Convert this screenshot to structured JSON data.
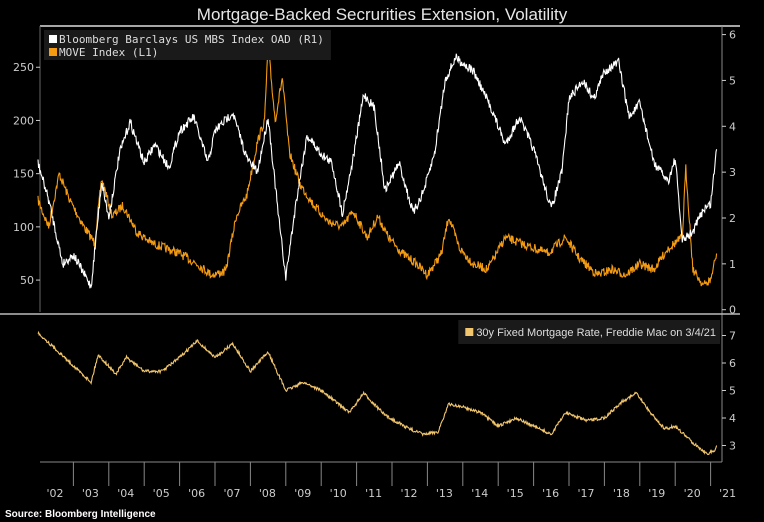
{
  "title": "Mortgage-Backed Secrurities Extension, Volatility",
  "source": "Source: Bloomberg Intelligence",
  "chart_data": [
    {
      "type": "line",
      "panel": "top",
      "legend_placement": "top-left",
      "grid": false,
      "x_tick_labels": [
        "'02",
        "'03",
        "'04",
        "'05",
        "'06",
        "'07",
        "'08",
        "'09",
        "'10",
        "'11",
        "'12",
        "'13",
        "'14",
        "'15",
        "'16",
        "'17",
        "'18",
        "'19",
        "'20",
        "'21"
      ],
      "left_axis": {
        "ticks": [
          50,
          100,
          150,
          200,
          250
        ],
        "range": [
          20,
          285
        ]
      },
      "right_axis": {
        "ticks": [
          0,
          1,
          2,
          3,
          4,
          5,
          6
        ],
        "range": [
          -0.05,
          6.1
        ]
      },
      "series": [
        {
          "name": "Bloomberg Barclays US MBS Index OAD (R1)",
          "axis": "right",
          "color": "#ffffff",
          "x": [
            2002.0,
            2002.3,
            2002.7,
            2003.0,
            2003.5,
            2003.8,
            2004.0,
            2004.3,
            2004.6,
            2005.0,
            2005.3,
            2005.7,
            2006.0,
            2006.4,
            2006.8,
            2007.0,
            2007.5,
            2007.9,
            2008.2,
            2008.5,
            2008.8,
            2009.0,
            2009.3,
            2009.6,
            2010.0,
            2010.3,
            2010.6,
            2010.9,
            2011.2,
            2011.5,
            2011.8,
            2012.2,
            2012.6,
            2012.9,
            2013.2,
            2013.5,
            2013.8,
            2014.3,
            2014.8,
            2015.2,
            2015.6,
            2016.0,
            2016.5,
            2016.8,
            2017.0,
            2017.4,
            2017.7,
            2018.0,
            2018.4,
            2018.7,
            2019.0,
            2019.4,
            2019.8,
            2020.0,
            2020.2,
            2020.5,
            2020.8,
            2021.0,
            2021.17
          ],
          "y": [
            3.2,
            2.4,
            1.0,
            1.2,
            0.5,
            2.8,
            2.0,
            3.4,
            4.1,
            3.2,
            3.6,
            3.1,
            3.9,
            4.2,
            3.2,
            3.9,
            4.3,
            3.3,
            3.0,
            4.2,
            2.0,
            0.7,
            2.4,
            3.8,
            3.4,
            3.2,
            2.1,
            3.3,
            4.7,
            4.4,
            2.6,
            3.2,
            2.1,
            2.6,
            3.4,
            5.0,
            5.5,
            5.2,
            4.4,
            3.6,
            4.2,
            3.5,
            2.2,
            3.0,
            4.6,
            5.0,
            4.6,
            5.2,
            5.4,
            4.2,
            4.5,
            3.2,
            2.8,
            3.3,
            1.5,
            1.7,
            2.2,
            2.3,
            3.5
          ]
        },
        {
          "name": "MOVE Index (L1)",
          "axis": "left",
          "color": "#f59b12",
          "x": [
            2002.0,
            2002.3,
            2002.6,
            2002.9,
            2003.3,
            2003.6,
            2003.8,
            2004.1,
            2004.4,
            2004.8,
            2005.2,
            2005.6,
            2006.0,
            2006.5,
            2006.9,
            2007.3,
            2007.6,
            2007.9,
            2008.2,
            2008.4,
            2008.5,
            2008.7,
            2008.9,
            2009.1,
            2009.4,
            2009.8,
            2010.2,
            2010.6,
            2010.9,
            2011.3,
            2011.6,
            2011.9,
            2012.3,
            2012.7,
            2013.0,
            2013.4,
            2013.6,
            2013.9,
            2014.3,
            2014.7,
            2015.2,
            2015.6,
            2016.0,
            2016.4,
            2016.9,
            2017.3,
            2017.8,
            2018.2,
            2018.6,
            2019.0,
            2019.4,
            2019.8,
            2020.2,
            2020.3,
            2020.5,
            2020.8,
            2021.0,
            2021.17
          ],
          "y": [
            125,
            100,
            150,
            125,
            100,
            85,
            145,
            110,
            120,
            95,
            85,
            80,
            75,
            65,
            55,
            58,
            110,
            130,
            180,
            200,
            270,
            200,
            240,
            170,
            140,
            120,
            105,
            100,
            115,
            90,
            110,
            90,
            75,
            65,
            55,
            75,
            110,
            80,
            65,
            60,
            90,
            85,
            80,
            75,
            90,
            70,
            55,
            60,
            55,
            65,
            60,
            80,
            90,
            155,
            60,
            45,
            50,
            75
          ]
        }
      ]
    },
    {
      "type": "line",
      "panel": "bottom",
      "legend_placement": "top-right",
      "grid": false,
      "right_axis": {
        "ticks": [
          3,
          4,
          5,
          6,
          7
        ],
        "range": [
          2.4,
          7.2
        ]
      },
      "series": [
        {
          "name": "30y Fixed Mortgage Rate, Freddie Mac  on 3/4/21",
          "axis": "right",
          "color": "#f2c66d",
          "x": [
            2002.0,
            2002.5,
            2003.0,
            2003.5,
            2003.7,
            2004.2,
            2004.5,
            2005.0,
            2005.5,
            2006.0,
            2006.5,
            2007.0,
            2007.5,
            2008.0,
            2008.5,
            2009.0,
            2009.5,
            2010.0,
            2010.8,
            2011.2,
            2011.8,
            2012.5,
            2012.9,
            2013.3,
            2013.6,
            2014.0,
            2014.5,
            2015.0,
            2015.5,
            2016.0,
            2016.5,
            2016.9,
            2017.5,
            2018.0,
            2018.5,
            2018.9,
            2019.3,
            2019.7,
            2020.0,
            2020.5,
            2020.9,
            2021.1,
            2021.17
          ],
          "y": [
            7.1,
            6.5,
            5.9,
            5.3,
            6.3,
            5.6,
            6.2,
            5.7,
            5.7,
            6.2,
            6.8,
            6.2,
            6.7,
            5.7,
            6.4,
            5.0,
            5.3,
            5.0,
            4.2,
            4.9,
            4.1,
            3.6,
            3.4,
            3.5,
            4.5,
            4.4,
            4.2,
            3.7,
            4.0,
            3.7,
            3.4,
            4.2,
            3.9,
            4.0,
            4.6,
            4.9,
            4.2,
            3.6,
            3.7,
            3.1,
            2.7,
            2.8,
            3.0
          ]
        }
      ]
    }
  ]
}
